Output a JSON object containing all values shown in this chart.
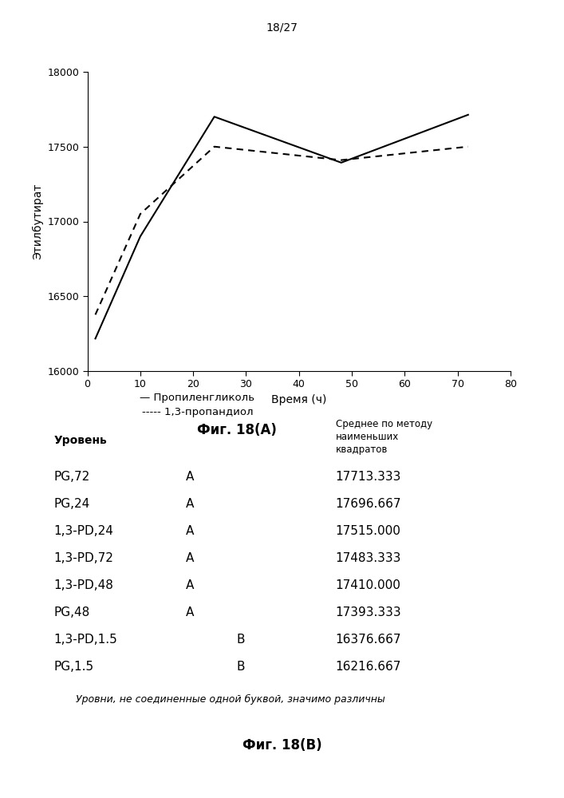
{
  "page_label": "18/27",
  "chart": {
    "solid_line": {
      "x": [
        1.5,
        10,
        24,
        48,
        72
      ],
      "y": [
        16217,
        16900,
        17700,
        17393,
        17713
      ],
      "label": "— Пропиленгликоль"
    },
    "dashed_line": {
      "x": [
        1.5,
        10,
        24,
        48,
        72
      ],
      "y": [
        16377,
        17050,
        17500,
        17410,
        17500
      ],
      "label": "----- 1,3-пропандиол"
    },
    "xlabel": "Время (ч)",
    "ylabel": "Этилбутират",
    "xlim": [
      0,
      80
    ],
    "ylim": [
      16000,
      18000
    ],
    "yticks": [
      16000,
      16500,
      17000,
      17500,
      18000
    ],
    "xticks": [
      0,
      10,
      20,
      30,
      40,
      50,
      60,
      70,
      80
    ]
  },
  "legend_solid": "— Пропиленгликоль",
  "legend_dashed": "----- 1,3-пропандиол",
  "fig_a_title": "Фиг. 18(A)",
  "table": {
    "col_header_level": "Уровень",
    "col_header_mean": "Среднее по методу\nнаименьших\nквадратов",
    "rows": [
      {
        "level": "PG,72",
        "group_a": "A",
        "group_b": "",
        "mean": "17713.333"
      },
      {
        "level": "PG,24",
        "group_a": "A",
        "group_b": "",
        "mean": "17696.667"
      },
      {
        "level": "1,3-PD,24",
        "group_a": "A",
        "group_b": "",
        "mean": "17515.000"
      },
      {
        "level": "1,3-PD,72",
        "group_a": "A",
        "group_b": "",
        "mean": "17483.333"
      },
      {
        "level": "1,3-PD,48",
        "group_a": "A",
        "group_b": "",
        "mean": "17410.000"
      },
      {
        "level": "PG,48",
        "group_a": "A",
        "group_b": "",
        "mean": "17393.333"
      },
      {
        "level": "1,3-PD,1.5",
        "group_a": "",
        "group_b": "B",
        "mean": "16376.667"
      },
      {
        "level": "PG,1.5",
        "group_a": "",
        "group_b": "B",
        "mean": "16216.667"
      }
    ],
    "footnote": "Уровни, не соединенные одной буквой, значимо различны"
  },
  "fig_b_title": "Фиг. 18(B)"
}
